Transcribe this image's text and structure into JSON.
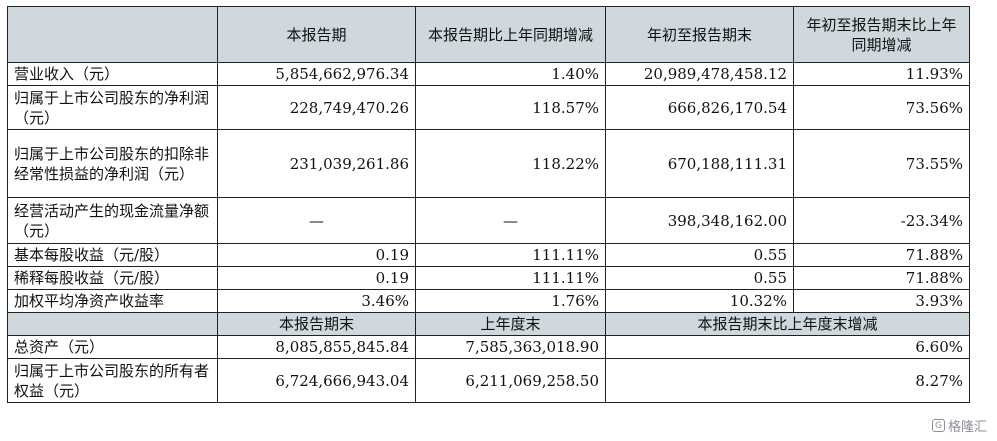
{
  "header": {
    "blank": "",
    "col1": "本报告期",
    "col2": "本报告期比上年同期增减",
    "col3": "年初至报告期末",
    "col4": "年初至报告期末比上年同期增减"
  },
  "rows": [
    {
      "label": "营业收入（元）",
      "v1": "5,854,662,976.34",
      "v2": "1.40%",
      "v3": "20,989,478,458.12",
      "v4": "11.93%"
    },
    {
      "label": "归属于上市公司股东的净利润（元）",
      "v1": "228,749,470.26",
      "v2": "118.57%",
      "v3": "666,826,170.54",
      "v4": "73.56%"
    },
    {
      "label": "归属于上市公司股东的扣除非经常性损益的净利润（元）",
      "v1": "231,039,261.86",
      "v2": "118.22%",
      "v3": "670,188,111.31",
      "v4": "73.55%"
    },
    {
      "label": "经营活动产生的现金流量净额（元）",
      "v1": "—",
      "v2": "—",
      "v3": "398,348,162.00",
      "v4": "-23.34%"
    },
    {
      "label": "基本每股收益（元/股）",
      "v1": "0.19",
      "v2": "111.11%",
      "v3": "0.55",
      "v4": "71.88%"
    },
    {
      "label": "稀释每股收益（元/股）",
      "v1": "0.19",
      "v2": "111.11%",
      "v3": "0.55",
      "v4": "71.88%"
    },
    {
      "label": "加权平均净资产收益率",
      "v1": "3.46%",
      "v2": "1.76%",
      "v3": "10.32%",
      "v4": "3.93%"
    }
  ],
  "header2": {
    "blank": "",
    "col1": "本报告期末",
    "col2": "上年度末",
    "col3": "本报告期末比上年度末增减"
  },
  "rows2": [
    {
      "label": "总资产（元）",
      "v1": "8,085,855,845.84",
      "v2": "7,585,363,018.90",
      "v3": "6.60%"
    },
    {
      "label": "归属于上市公司股东的所有者权益（元）",
      "v1": "6,724,666,943.04",
      "v2": "6,211,069,258.50",
      "v3": "8.27%"
    }
  ],
  "watermark": {
    "icon": "gelonghui-logo-icon",
    "text": "格隆汇"
  }
}
